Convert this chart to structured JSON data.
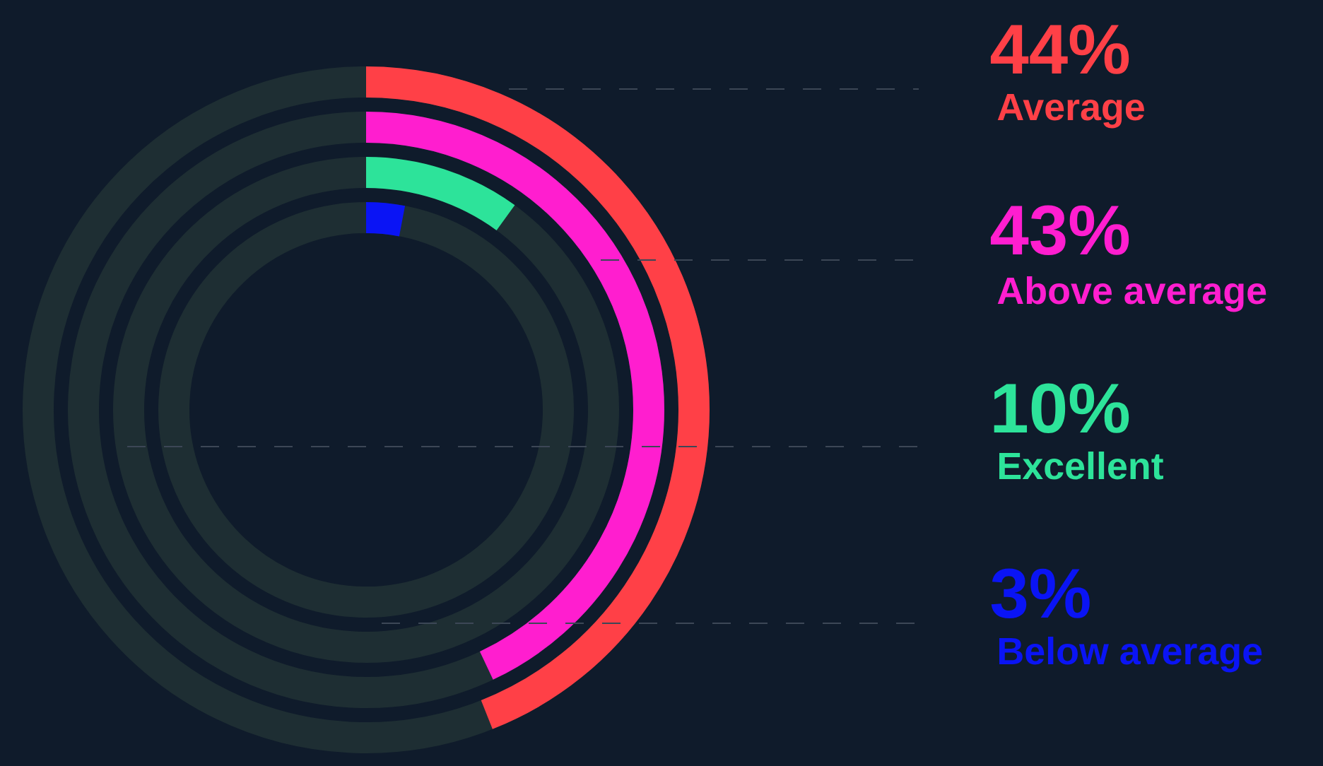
{
  "chart_data": {
    "type": "other",
    "categories": [
      "Average",
      "Above average",
      "Excellent",
      "Below average"
    ],
    "values": [
      44,
      43,
      10,
      3
    ],
    "value_labels": [
      "44%",
      "43%",
      "10%",
      "3%"
    ],
    "colors": [
      "#ff4047",
      "#ff1ecf",
      "#2de39a",
      "#0a14f5"
    ]
  }
}
